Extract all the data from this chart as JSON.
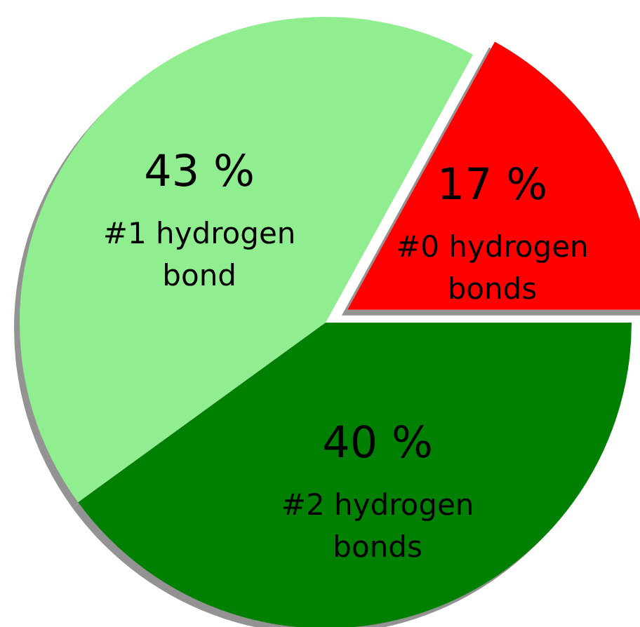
{
  "chart_data": {
    "type": "pie",
    "categories": [
      "#0 hydrogen bonds",
      "#1 hydrogen bond",
      "#2 hydrogen bonds"
    ],
    "values": [
      17,
      43,
      40
    ],
    "colors": [
      "#ff0000",
      "#90ee90",
      "#008000"
    ],
    "value_labels": [
      "17 %",
      "43 %",
      "40 %"
    ]
  }
}
